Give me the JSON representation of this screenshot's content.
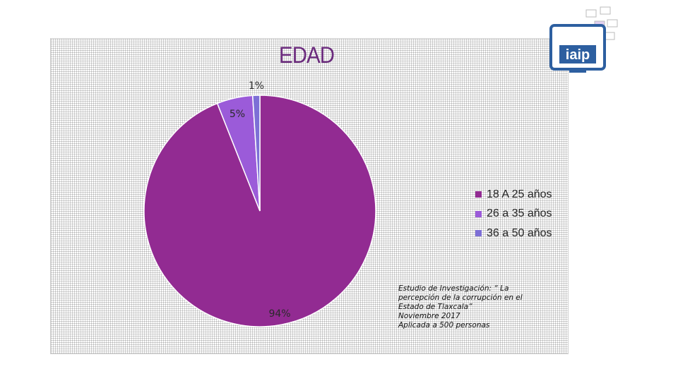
{
  "chart_data": {
    "type": "pie",
    "title": "EDAD",
    "categories": [
      "18 A 25 años",
      "26 a 35 años",
      "36 a 50 años"
    ],
    "values": [
      94,
      5,
      1
    ],
    "data_labels": [
      "94%",
      "5%",
      "1%"
    ],
    "colors": [
      "#922b92",
      "#9b5bd9",
      "#7d6fd6"
    ],
    "legend_position": "right"
  },
  "source_note": [
    "Estudio de Investigación:  “ La",
    "percepción de la corrupción en el",
    "Estado de Tlaxcala”",
    "Noviembre 2017",
    "Aplicada a 500 personas"
  ],
  "logo": {
    "text": "iaip",
    "icon": "iaip-logo-icon"
  }
}
